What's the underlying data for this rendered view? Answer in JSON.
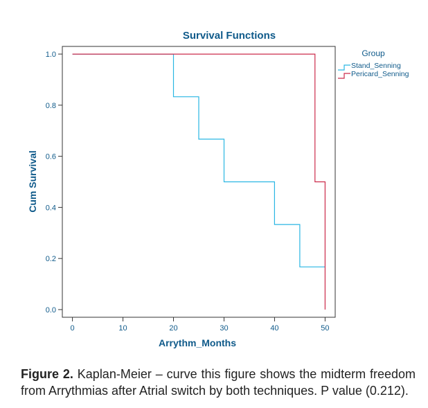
{
  "chart_data": {
    "type": "line",
    "step": true,
    "title": "Survival Functions",
    "xlabel": "Arrythm_Months",
    "ylabel": "Cum Survival",
    "xlim": [
      -2,
      52
    ],
    "ylim": [
      -0.03,
      1.03
    ],
    "xticks": [
      0,
      10,
      20,
      30,
      40,
      50
    ],
    "yticks": [
      0.0,
      0.2,
      0.4,
      0.6,
      0.8,
      1.0
    ],
    "ytick_labels": [
      "0.0",
      "0.2",
      "0.4",
      "0.6",
      "0.8",
      "1.0"
    ],
    "grid": false,
    "legend": {
      "title": "Group",
      "placement": "top-right, outside plot"
    },
    "series": [
      {
        "name": "Stand_Senning",
        "color": "#29b6e3",
        "x": [
          0,
          20,
          20,
          25,
          25,
          30,
          30,
          40,
          40,
          45,
          45,
          50
        ],
        "y": [
          1.0,
          1.0,
          0.833,
          0.833,
          0.667,
          0.667,
          0.5,
          0.5,
          0.333,
          0.333,
          0.167,
          0.167
        ]
      },
      {
        "name": "Pericard_Senning",
        "color": "#cc2a4a",
        "x": [
          0,
          48,
          48,
          50,
          50
        ],
        "y": [
          1.0,
          1.0,
          0.5,
          0.5,
          0.0
        ]
      }
    ]
  },
  "caption": {
    "lead": "Figure 2.",
    "text": " Kaplan-Meier – curve this figure shows the midterm freedom from Arrythmias after Atrial switch by both techniques. P value (0.212)."
  }
}
